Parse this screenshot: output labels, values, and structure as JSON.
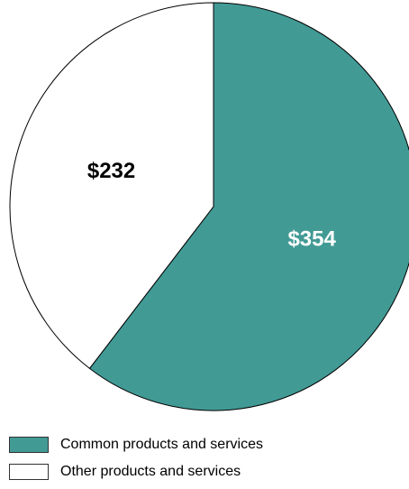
{
  "chart_data": {
    "type": "pie",
    "title": "",
    "slices": [
      {
        "name": "Common products and services",
        "value": 354,
        "label": "$354",
        "color": "#429a95",
        "label_color": "#ffffff"
      },
      {
        "name": "Other products and services",
        "value": 232,
        "label": "$232",
        "color": "#ffffff",
        "label_color": "#000000"
      }
    ],
    "start_angle_deg": 0,
    "direction": "clockwise",
    "legend": {
      "position": "bottom-left",
      "items": [
        {
          "label": "Common products and services",
          "color": "#429a95"
        },
        {
          "label": "Other products and services",
          "color": "#ffffff"
        }
      ]
    }
  }
}
